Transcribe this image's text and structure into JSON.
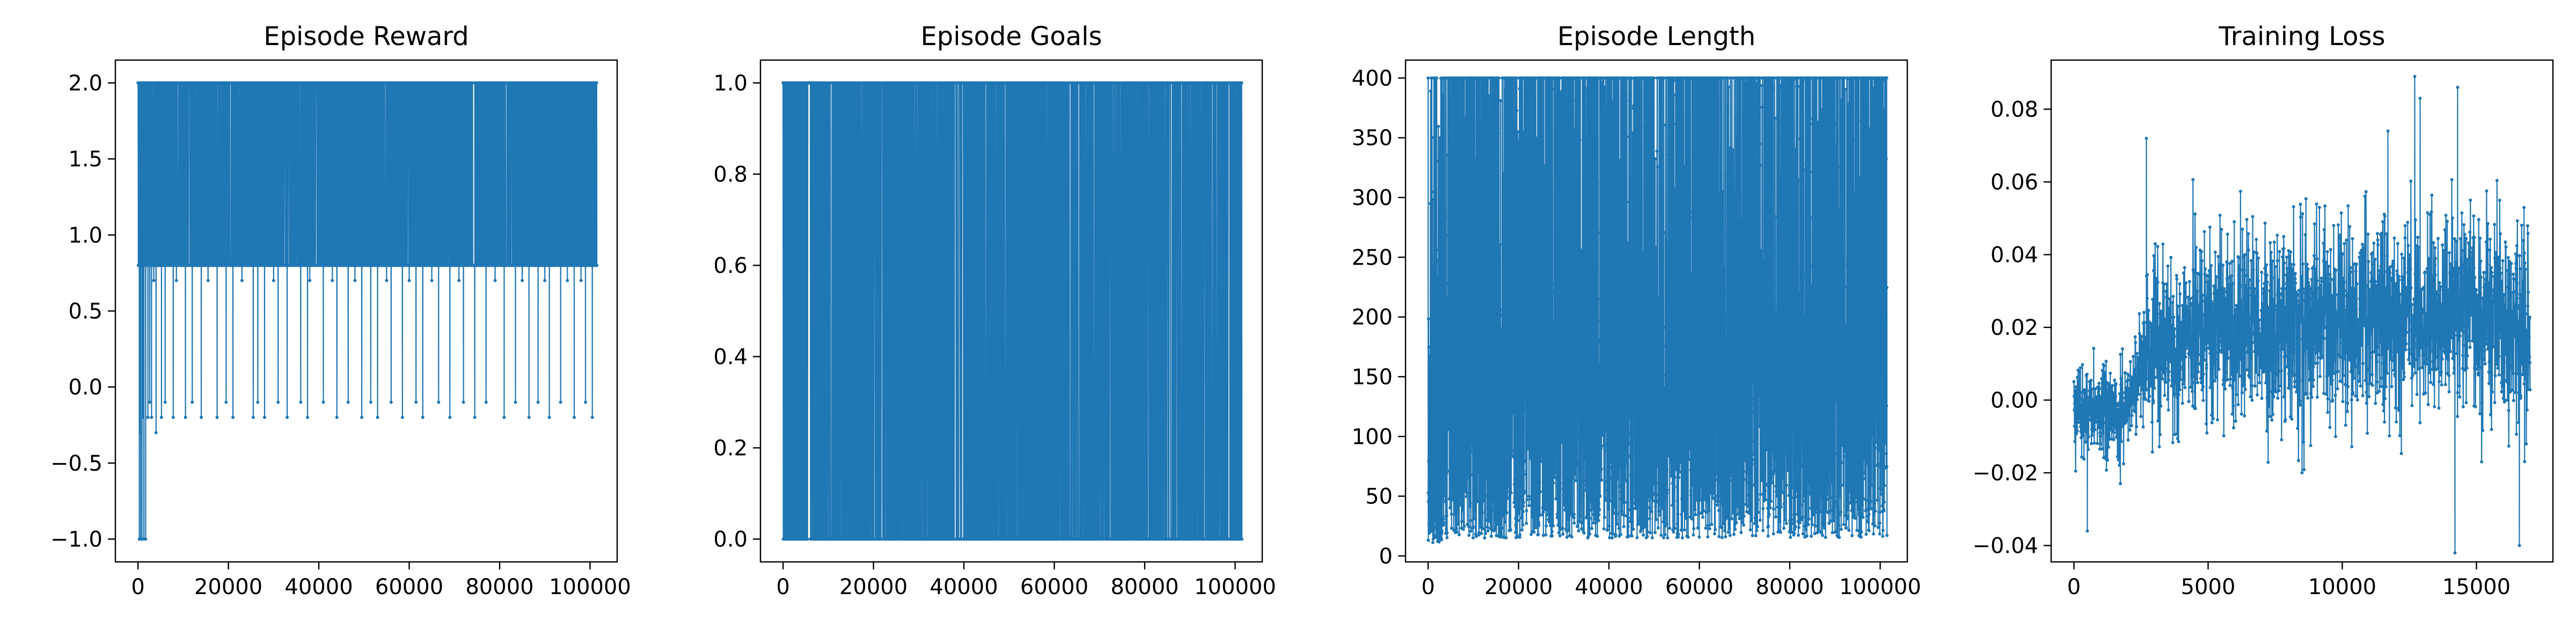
{
  "chart_data": [
    {
      "type": "line",
      "title": "Episode Reward",
      "xlabel": "",
      "ylabel": "",
      "xlim": [
        -5000,
        106000
      ],
      "ylim": [
        -1.15,
        2.15
      ],
      "xticks": [
        0,
        20000,
        40000,
        60000,
        80000,
        100000
      ],
      "yticks": [
        -1.0,
        -0.5,
        0.0,
        0.5,
        1.0,
        1.5,
        2.0
      ],
      "ytick_decimals": 1,
      "grid": false,
      "marker": "dot",
      "color": "#1f77b4",
      "pattern": "binary",
      "x_range": [
        0,
        101500
      ],
      "n_points": 2600,
      "levels": [
        2.0,
        0.8
      ],
      "dips": [
        {
          "value": -1.0,
          "x": [
            300,
            600,
            900,
            1300,
            1700
          ]
        },
        {
          "value": -0.3,
          "x": [
            500,
            4000
          ]
        },
        {
          "value": -0.2,
          "x": [
            1100,
            2200,
            3000,
            5200,
            7800,
            10500,
            14000,
            17500,
            21000,
            25500,
            28000,
            33000,
            37500,
            44000,
            49500,
            53000,
            58500,
            63000,
            69000,
            74500,
            81000,
            86500,
            91000,
            96500,
            100500
          ]
        },
        {
          "value": -0.1,
          "x": [
            2600,
            6000,
            12000,
            19500,
            26500,
            31000,
            36000,
            41000,
            46500,
            51500,
            56000,
            61500,
            66500,
            72000,
            77000,
            83500,
            88500,
            93500,
            99000
          ]
        },
        {
          "value": 0.7,
          "x": [
            3500,
            8500,
            15500,
            23000,
            30000,
            38000,
            43000,
            48000,
            55000,
            60000,
            65000,
            71000,
            79000,
            85000,
            90000,
            95000,
            98000
          ]
        }
      ]
    },
    {
      "type": "line",
      "title": "Episode Goals",
      "xlabel": "",
      "ylabel": "",
      "xlim": [
        -5000,
        106000
      ],
      "ylim": [
        -0.05,
        1.05
      ],
      "xticks": [
        0,
        20000,
        40000,
        60000,
        80000,
        100000
      ],
      "yticks": [
        0.0,
        0.2,
        0.4,
        0.6,
        0.8,
        1.0
      ],
      "ytick_decimals": 1,
      "grid": false,
      "marker": "dot",
      "color": "#1f77b4",
      "pattern": "binary",
      "x_range": [
        0,
        101500
      ],
      "n_points": 1800,
      "levels": [
        1.0,
        0.0
      ],
      "dense_until": 5000
    },
    {
      "type": "line",
      "title": "Episode Length",
      "xlabel": "",
      "ylabel": "",
      "xlim": [
        -5000,
        106000
      ],
      "ylim": [
        -5,
        415
      ],
      "xticks": [
        0,
        20000,
        40000,
        60000,
        80000,
        100000
      ],
      "yticks": [
        0,
        50,
        100,
        150,
        200,
        250,
        300,
        350,
        400
      ],
      "ytick_decimals": 0,
      "grid": false,
      "marker": "dot",
      "color": "#1f77b4",
      "pattern": "noise",
      "x_range": [
        0,
        101500
      ],
      "n_points": 4500,
      "baseline_min": 15,
      "baseline_max": 220,
      "cap": 400
    },
    {
      "type": "line",
      "title": "Training Loss",
      "xlabel": "",
      "ylabel": "",
      "xlim": [
        -850,
        17850
      ],
      "ylim": [
        -0.0445,
        0.0935
      ],
      "xticks": [
        0,
        5000,
        10000,
        15000
      ],
      "yticks": [
        -0.04,
        -0.02,
        0.0,
        0.02,
        0.04,
        0.06,
        0.08
      ],
      "ytick_decimals": 2,
      "grid": false,
      "marker": "dot",
      "color": "#1f77b4",
      "pattern": "trend",
      "x_range": [
        0,
        17000
      ],
      "n_points": 2400,
      "trend": [
        [
          0,
          -0.003
        ],
        [
          2000,
          -0.002
        ],
        [
          2800,
          0.015
        ],
        [
          6000,
          0.02
        ],
        [
          10000,
          0.022
        ],
        [
          15000,
          0.025
        ],
        [
          17000,
          0.02
        ]
      ],
      "spread": [
        [
          0,
          0.012
        ],
        [
          2500,
          0.015
        ],
        [
          3000,
          0.028
        ],
        [
          17000,
          0.03
        ]
      ],
      "extremes": [
        [
          2700,
          0.072
        ],
        [
          12700,
          0.089
        ],
        [
          14300,
          0.086
        ],
        [
          14200,
          -0.042
        ],
        [
          16600,
          -0.04
        ],
        [
          500,
          -0.036
        ],
        [
          8500,
          -0.02
        ],
        [
          11700,
          0.074
        ],
        [
          12900,
          0.083
        ]
      ]
    }
  ]
}
